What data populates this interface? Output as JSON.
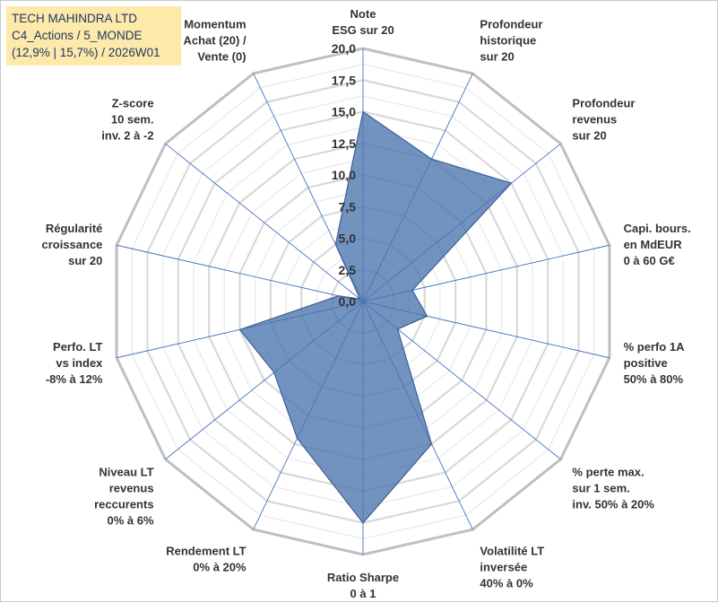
{
  "chart_data": {
    "type": "radar",
    "title": [
      "TECH MAHINDRA LTD",
      "C4_Actions / 5_MONDE",
      "(12,9% | 15,7%) / 2026W01"
    ],
    "axis_min": 0,
    "axis_max": 20,
    "tick_labels": [
      "0,0",
      "2,5",
      "5,0",
      "7,5",
      "10,0",
      "12,5",
      "15,0",
      "17,5",
      "20,0"
    ],
    "categories": [
      [
        "Note",
        "ESG sur 20"
      ],
      [
        "Profondeur",
        "historique",
        "sur 20"
      ],
      [
        "Profondeur",
        "revenus",
        "sur 20"
      ],
      [
        "Capi. bours.",
        "en MdEUR",
        "0 à 60 G€"
      ],
      [
        "% perfo 1A",
        "positive",
        "50% à 80%"
      ],
      [
        "% perte max.",
        "sur 1 sem.",
        "inv. 50% à 20%"
      ],
      [
        "Volatilité LT",
        "inversée",
        "40% à 0%"
      ],
      [
        "Ratio Sharpe",
        "0 à 1"
      ],
      [
        "Rendement LT",
        "0% à 20%"
      ],
      [
        "Niveau LT",
        "revenus",
        "reccurents",
        "0% à 6%"
      ],
      [
        "Perfo. LT",
        "vs index",
        "-8% à 12%"
      ],
      [
        "Régularité",
        "croissance",
        "sur 20"
      ],
      [
        "Z-score",
        "10 sem.",
        "inv. 2 à -2"
      ],
      [
        "Momentum",
        "Achat (20) /",
        "Vente (0)"
      ]
    ],
    "series": [
      {
        "name": "TECH MAHINDRA LTD",
        "values": [
          15.0,
          12.5,
          15.0,
          4.0,
          5.2,
          3.5,
          12.5,
          17.5,
          12.0,
          9.0,
          10.0,
          2.0,
          0.3,
          5.0
        ],
        "color": "#4a74ad"
      }
    ]
  }
}
